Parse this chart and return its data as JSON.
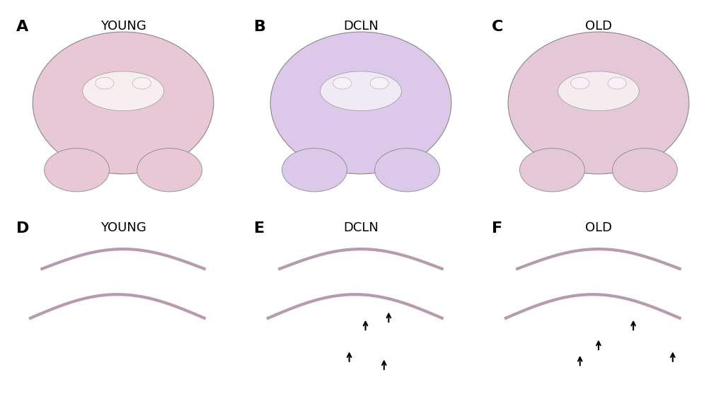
{
  "figure_width": 10.2,
  "figure_height": 5.81,
  "dpi": 100,
  "background_color": "#ffffff",
  "labels": [
    "A",
    "B",
    "C",
    "D",
    "E",
    "F"
  ],
  "titles_top": [
    "YOUNG",
    "DCLN",
    "OLD"
  ],
  "titles_bottom": [
    "YOUNG",
    "DCLN",
    "OLD"
  ],
  "label_fontsize": 16,
  "title_fontsize": 13,
  "label_color": "#000000",
  "title_color": "#000000",
  "top_bg": [
    "#f7eeef",
    "#f0eaf5",
    "#f5ecf0"
  ],
  "top_tissue": [
    "#e8c8d4",
    "#dcc8e8",
    "#e4c8d8"
  ],
  "top_dark": [
    "#c9a8c0",
    "#b8a0d0",
    "#c0a0b8"
  ],
  "bottom_bg": [
    "#f0dde4",
    "#f0dde4",
    "#f0dde4"
  ],
  "bottom_tissue": [
    "#e8c0cc",
    "#e8c0cc",
    "#e8c0cc"
  ],
  "bottom_dark": [
    "#b89ab0",
    "#b89ab0",
    "#b89ab0"
  ],
  "arrow_color": "#000000",
  "e_arrows": [
    [
      0.52,
      0.38,
      0.07
    ],
    [
      0.62,
      0.42,
      0.07
    ],
    [
      0.45,
      0.22,
      0.07
    ],
    [
      0.6,
      0.18,
      0.07
    ]
  ],
  "f_arrows": [
    [
      0.65,
      0.38,
      0.07
    ],
    [
      0.5,
      0.28,
      0.07
    ],
    [
      0.42,
      0.2,
      0.07
    ],
    [
      0.82,
      0.22,
      0.07
    ]
  ]
}
